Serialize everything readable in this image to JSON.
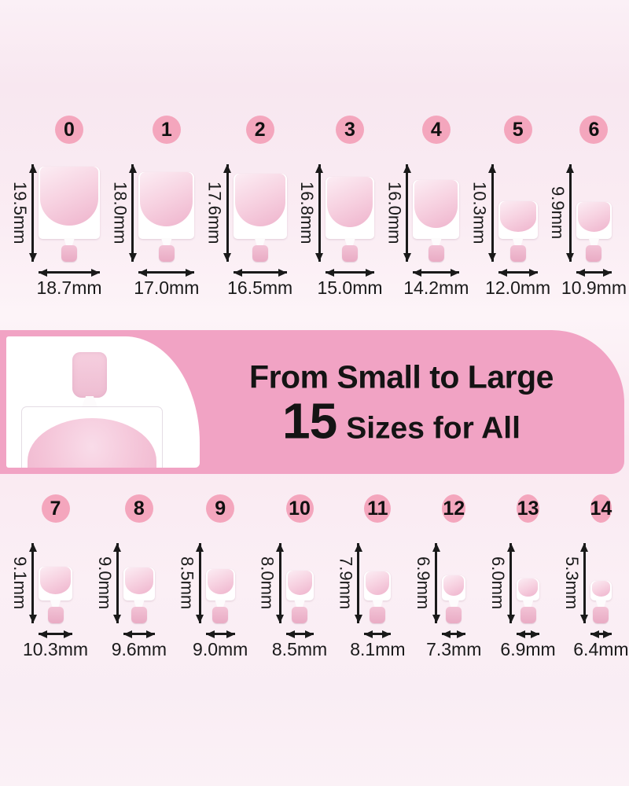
{
  "banner": {
    "line1": "From Small to Large",
    "count": "15",
    "line2": "Sizes for All"
  },
  "colors": {
    "badge_pink": "#f4a6bd",
    "banner_pink": "#f1a3c4",
    "nail_pink": "#f5cde0",
    "tab_pink": "#eaaec6",
    "text": "#1a1a1a"
  },
  "rows": [
    {
      "name": "sizes-0-6",
      "sizes": [
        {
          "label": "0",
          "height_mm": 19.5,
          "width_mm": 18.7,
          "height_label": "19.5mm",
          "width_label": "18.7mm"
        },
        {
          "label": "1",
          "height_mm": 18.0,
          "width_mm": 17.0,
          "height_label": "18.0mm",
          "width_label": "17.0mm"
        },
        {
          "label": "2",
          "height_mm": 17.6,
          "width_mm": 16.5,
          "height_label": "17.6mm",
          "width_label": "16.5mm"
        },
        {
          "label": "3",
          "height_mm": 16.8,
          "width_mm": 15.0,
          "height_label": "16.8mm",
          "width_label": "15.0mm"
        },
        {
          "label": "4",
          "height_mm": 16.0,
          "width_mm": 14.2,
          "height_label": "16.0mm",
          "width_label": "14.2mm"
        },
        {
          "label": "5",
          "height_mm": 10.3,
          "width_mm": 12.0,
          "height_label": "10.3mm",
          "width_label": "12.0mm"
        },
        {
          "label": "6",
          "height_mm": 9.9,
          "width_mm": 10.9,
          "height_label": "9.9mm",
          "width_label": "10.9mm"
        }
      ]
    },
    {
      "name": "sizes-7-14",
      "sizes": [
        {
          "label": "7",
          "height_mm": 9.1,
          "width_mm": 10.3,
          "height_label": "9.1mm",
          "width_label": "10.3mm"
        },
        {
          "label": "8",
          "height_mm": 9.0,
          "width_mm": 9.6,
          "height_label": "9.0mm",
          "width_label": "9.6mm"
        },
        {
          "label": "9",
          "height_mm": 8.5,
          "width_mm": 9.0,
          "height_label": "8.5mm",
          "width_label": "9.0mm"
        },
        {
          "label": "10",
          "height_mm": 8.0,
          "width_mm": 8.5,
          "height_label": "8.0mm",
          "width_label": "8.5mm"
        },
        {
          "label": "11",
          "height_mm": 7.9,
          "width_mm": 8.1,
          "height_label": "7.9mm",
          "width_label": "8.1mm"
        },
        {
          "label": "12",
          "height_mm": 6.9,
          "width_mm": 7.3,
          "height_label": "6.9mm",
          "width_label": "7.3mm"
        },
        {
          "label": "13",
          "height_mm": 6.0,
          "width_mm": 6.9,
          "height_label": "6.0mm",
          "width_label": "6.9mm"
        },
        {
          "label": "14",
          "height_mm": 5.3,
          "width_mm": 6.4,
          "height_label": "5.3mm",
          "width_label": "6.4mm"
        }
      ]
    }
  ]
}
